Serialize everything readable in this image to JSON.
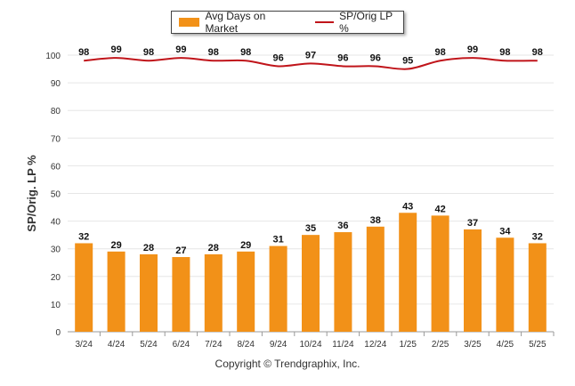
{
  "legend": {
    "bar_label": "Avg Days on Market",
    "line_label": "SP/Orig LP %"
  },
  "copyright": "Copyright © Trendgraphix, Inc.",
  "colors": {
    "bar": "#f29118",
    "line": "#c0141a",
    "grid": "#e6e6e6",
    "text": "#222222"
  },
  "chart_data": {
    "type": "bar",
    "categories": [
      "3/24",
      "4/24",
      "5/24",
      "6/24",
      "7/24",
      "8/24",
      "9/24",
      "10/24",
      "11/24",
      "12/24",
      "1/25",
      "2/25",
      "3/25",
      "4/25",
      "5/25"
    ],
    "series": [
      {
        "name": "Avg Days on Market",
        "type": "bar",
        "values": [
          32,
          29,
          28,
          27,
          28,
          29,
          31,
          35,
          36,
          38,
          43,
          42,
          37,
          34,
          32
        ]
      },
      {
        "name": "SP/Orig LP %",
        "type": "line",
        "values": [
          98,
          99,
          98,
          99,
          98,
          98,
          96,
          97,
          96,
          96,
          95,
          98,
          99,
          98,
          98
        ]
      }
    ],
    "ylabel": "SP/Orig. LP %",
    "ylim": [
      0,
      100
    ],
    "yticks": [
      0,
      10,
      20,
      30,
      40,
      50,
      60,
      70,
      80,
      90,
      100
    ],
    "grid": true,
    "legend_position": "top-center"
  }
}
